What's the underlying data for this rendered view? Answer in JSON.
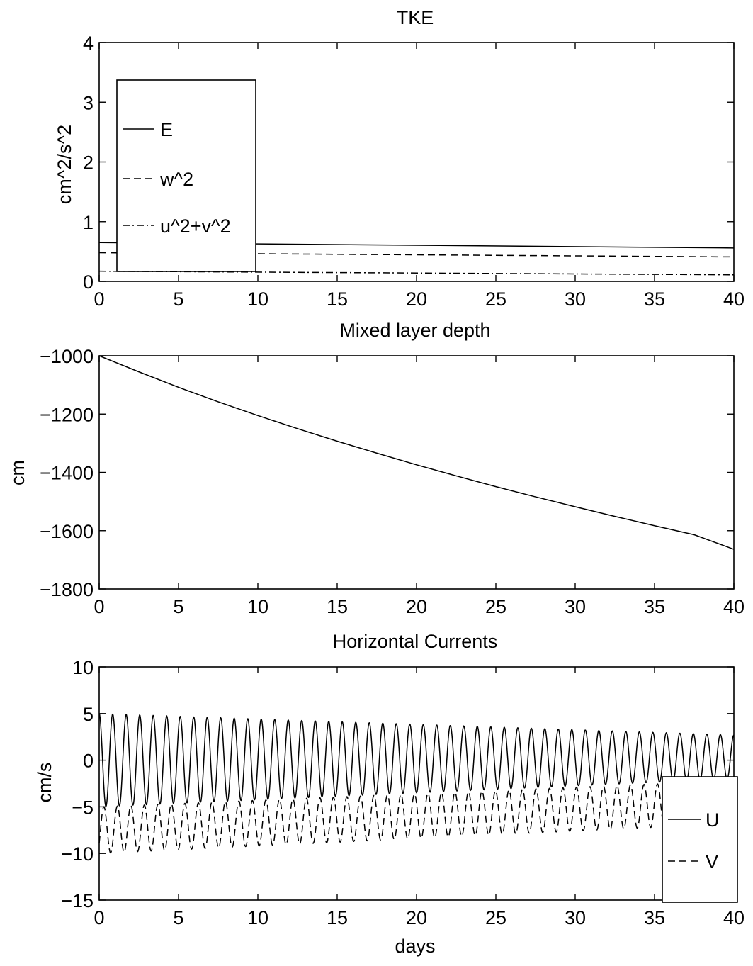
{
  "chart_data": [
    {
      "id": "tke",
      "type": "line",
      "title": "TKE",
      "xlabel": "",
      "ylabel": "cm^2/s^2",
      "xlim": [
        0,
        40
      ],
      "ylim": [
        0,
        4
      ],
      "xticks": [
        "0",
        "5",
        "10",
        "15",
        "20",
        "25",
        "30",
        "35",
        "40"
      ],
      "yticks": [
        "0",
        "1",
        "2",
        "3",
        "4"
      ],
      "grid": false,
      "legend_position": "upper-left",
      "series": [
        {
          "name": "E",
          "style": "solid",
          "x": [
            0,
            40
          ],
          "y": [
            0.65,
            0.56
          ]
        },
        {
          "name": "w^2",
          "style": "dashed",
          "x": [
            0,
            40
          ],
          "y": [
            0.48,
            0.41
          ]
        },
        {
          "name": "u^2+v^2",
          "style": "dashdot",
          "x": [
            0,
            40
          ],
          "y": [
            0.17,
            0.11
          ]
        }
      ]
    },
    {
      "id": "mld",
      "type": "line",
      "title": "Mixed layer depth",
      "xlabel": "",
      "ylabel": "cm",
      "xlim": [
        0,
        40
      ],
      "ylim": [
        -1800,
        -1000
      ],
      "xticks": [
        "0",
        "5",
        "10",
        "15",
        "20",
        "25",
        "30",
        "35",
        "40"
      ],
      "yticks": [
        "−1800",
        "−1600",
        "−1400",
        "−1200",
        "−1000"
      ],
      "grid": false,
      "series": [
        {
          "style": "solid",
          "x": [
            0,
            2.5,
            5,
            7.5,
            10,
            12.5,
            15,
            17.5,
            20,
            22.5,
            25,
            27.5,
            30,
            32.5,
            35,
            37.5,
            40
          ],
          "y": [
            -1000,
            -1055,
            -1108,
            -1158,
            -1205,
            -1250,
            -1293,
            -1334,
            -1374,
            -1412,
            -1449,
            -1484,
            -1518,
            -1551,
            -1583,
            -1614,
            -1664
          ]
        }
      ]
    },
    {
      "id": "currents",
      "type": "line",
      "title": "Horizontal Currents",
      "xlabel": "days",
      "ylabel": "cm/s",
      "xlim": [
        0,
        40
      ],
      "ylim": [
        -15,
        10
      ],
      "xticks": [
        "0",
        "5",
        "10",
        "15",
        "20",
        "25",
        "30",
        "35",
        "40"
      ],
      "yticks": [
        "−15",
        "−10",
        "−5",
        "0",
        "5",
        "10"
      ],
      "grid": false,
      "legend_position": "lower-right",
      "cycles": 47,
      "series": [
        {
          "name": "U",
          "style": "solid",
          "x": [
            0,
            40
          ],
          "max": [
            5.0,
            2.7
          ],
          "min": [
            -5.0,
            -2.0
          ]
        },
        {
          "name": "V",
          "style": "dashed",
          "x": [
            0,
            40
          ],
          "max": [
            -5.0,
            -2.2
          ],
          "min": [
            -10.0,
            -6.8
          ]
        }
      ]
    }
  ]
}
